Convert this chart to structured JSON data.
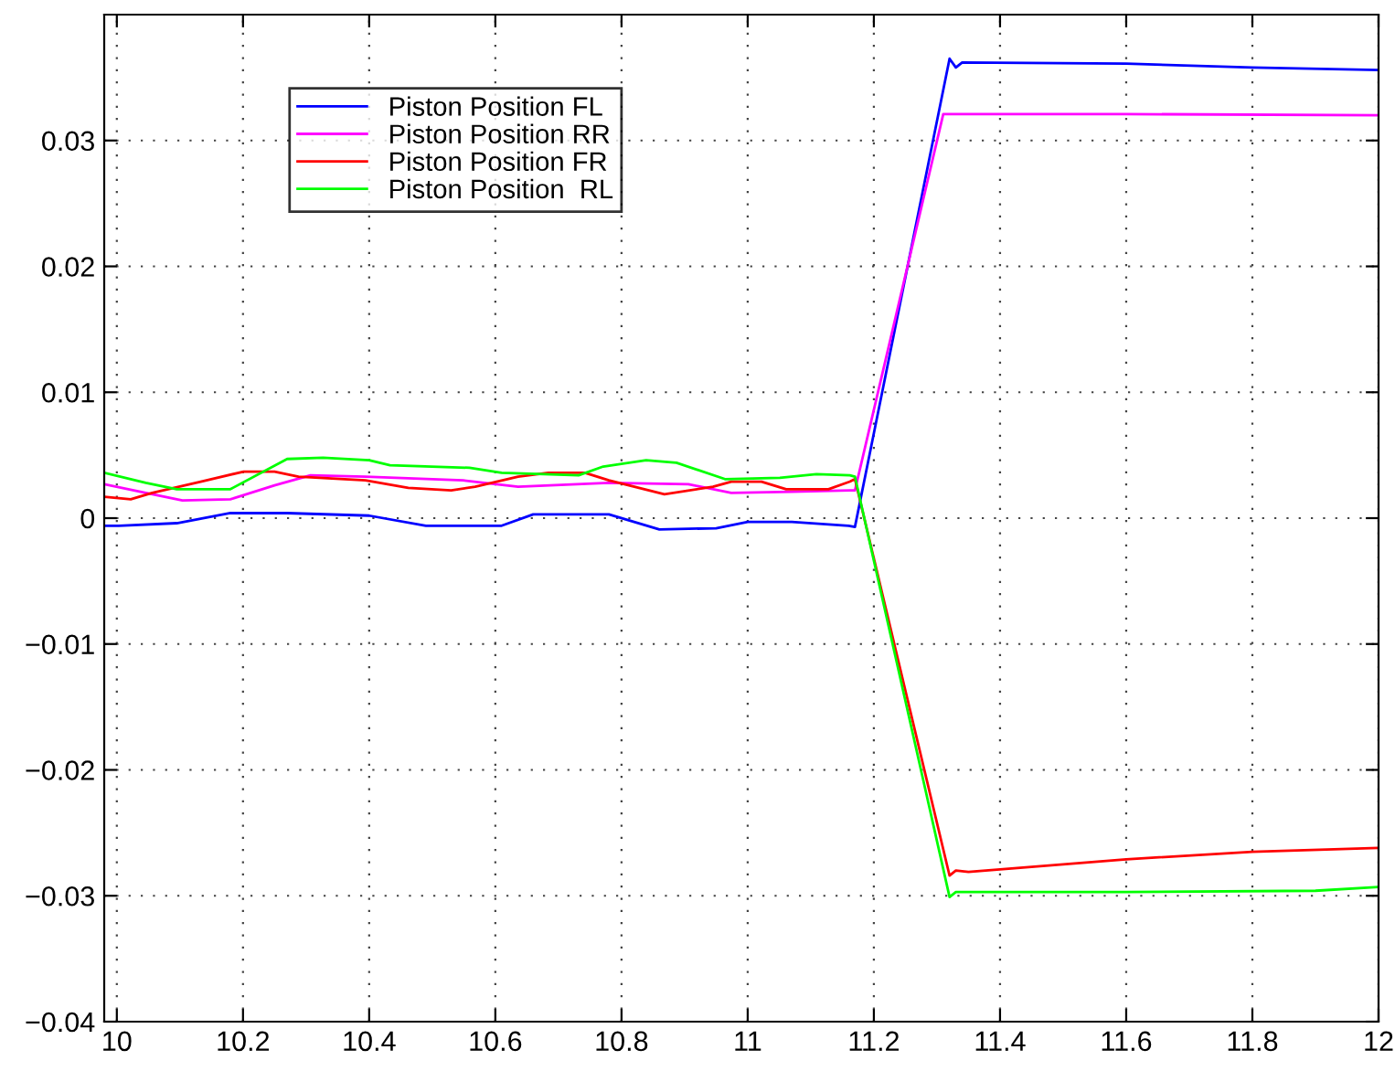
{
  "chart_data": {
    "type": "line",
    "xlim": [
      9.98,
      12
    ],
    "ylim": [
      -0.04,
      0.04
    ],
    "xticks": [
      10,
      10.2,
      10.4,
      10.6,
      10.8,
      11,
      11.2,
      11.4,
      11.6,
      11.8,
      12
    ],
    "yticks": [
      -0.04,
      -0.03,
      -0.02,
      -0.01,
      0,
      0.01,
      0.02,
      0.03
    ],
    "grid": true,
    "legend": "top left",
    "line_style": "solid",
    "series": [
      {
        "name": "Piston Position FL",
        "color": "#0000ff",
        "x": [
          9.98,
          10.003,
          10.095,
          10.18,
          10.27,
          10.4,
          10.49,
          10.61,
          10.66,
          10.78,
          10.86,
          10.95,
          11.0,
          11.07,
          11.16,
          11.17,
          11.32,
          11.33,
          11.34,
          11.6,
          11.8,
          12.0
        ],
        "values": [
          -0.0006,
          -0.0006,
          -0.0004,
          0.0004,
          0.0004,
          0.0002,
          -0.0006,
          -0.0006,
          0.0003,
          0.0003,
          -0.0009,
          -0.0008,
          -0.0003,
          -0.0003,
          -0.0006,
          -0.0007,
          0.0365,
          0.0358,
          0.0362,
          0.0361,
          0.0358,
          0.0356
        ]
      },
      {
        "name": "Piston Position RR",
        "color": "#ff00ff",
        "x": [
          9.98,
          10.046,
          10.104,
          10.18,
          10.25,
          10.307,
          10.394,
          10.549,
          10.636,
          10.78,
          10.906,
          10.974,
          11.07,
          11.162,
          11.17,
          11.31,
          11.6,
          12.0
        ],
        "values": [
          0.0027,
          0.002,
          0.0014,
          0.0015,
          0.0026,
          0.0034,
          0.0033,
          0.003,
          0.0025,
          0.0028,
          0.0027,
          0.002,
          0.0021,
          0.0022,
          0.0022,
          0.0321,
          0.0321,
          0.032
        ]
      },
      {
        "name": "Piston Position FR",
        "color": "#ff0000",
        "x": [
          9.98,
          10.022,
          10.056,
          10.133,
          10.201,
          10.25,
          10.288,
          10.394,
          10.462,
          10.53,
          10.568,
          10.636,
          10.684,
          10.742,
          10.78,
          10.868,
          10.945,
          10.974,
          11.022,
          11.061,
          11.128,
          11.162,
          11.17,
          11.32,
          11.33,
          11.35,
          11.6,
          11.8,
          12.0
        ],
        "values": [
          0.0017,
          0.0015,
          0.002,
          0.0029,
          0.0037,
          0.0037,
          0.0033,
          0.003,
          0.0024,
          0.0022,
          0.0025,
          0.0033,
          0.0036,
          0.0036,
          0.003,
          0.0019,
          0.0025,
          0.0029,
          0.0029,
          0.0023,
          0.0023,
          0.0029,
          0.0031,
          -0.0284,
          -0.028,
          -0.0281,
          -0.0271,
          -0.0265,
          -0.0262
        ]
      },
      {
        "name": "Piston Position  RL",
        "color": "#00ff00",
        "x": [
          9.98,
          10.046,
          10.095,
          10.18,
          10.27,
          10.327,
          10.4,
          10.433,
          10.559,
          10.61,
          10.732,
          10.771,
          10.839,
          10.887,
          10.964,
          11.051,
          11.109,
          11.162,
          11.17,
          11.32,
          11.33,
          11.6,
          11.9,
          12.0
        ],
        "values": [
          0.0036,
          0.0028,
          0.0023,
          0.0023,
          0.0047,
          0.0048,
          0.0046,
          0.0042,
          0.004,
          0.0036,
          0.0034,
          0.0041,
          0.0046,
          0.0044,
          0.0031,
          0.0032,
          0.0035,
          0.0034,
          0.0033,
          -0.0301,
          -0.0297,
          -0.0297,
          -0.0296,
          -0.0293
        ]
      }
    ]
  }
}
